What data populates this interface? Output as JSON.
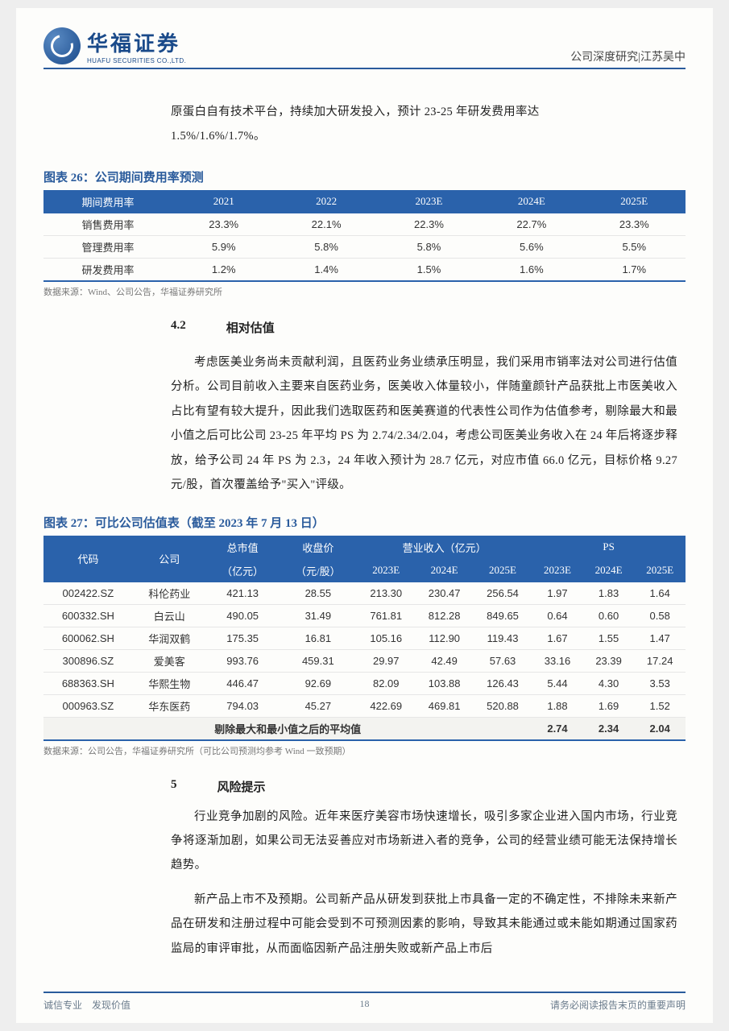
{
  "header": {
    "logo_cn": "华福证券",
    "logo_en": "HUAFU SECURITIES CO.,LTD.",
    "right": "公司深度研究|江苏吴中"
  },
  "intro_lines": [
    "原蛋白自有技术平台，持续加大研发投入，预计 23-25 年研发费用率达",
    "1.5%/1.6%/1.7%。"
  ],
  "table26": {
    "title": "图表 26：公司期间费用率预测",
    "columns": [
      "期间费用率",
      "2021",
      "2022",
      "2023E",
      "2024E",
      "2025E"
    ],
    "rows": [
      [
        "销售费用率",
        "23.3%",
        "22.1%",
        "22.3%",
        "22.7%",
        "23.3%"
      ],
      [
        "管理费用率",
        "5.9%",
        "5.8%",
        "5.8%",
        "5.6%",
        "5.5%"
      ],
      [
        "研发费用率",
        "1.2%",
        "1.4%",
        "1.5%",
        "1.6%",
        "1.7%"
      ]
    ],
    "source": "数据来源：Wind、公司公告，华福证券研究所",
    "header_bg": "#2a62ab",
    "header_fg": "#ffffff"
  },
  "sec42": {
    "num": "4.2",
    "title": "相对估值"
  },
  "para42": "考虑医美业务尚未贡献利润，且医药业务业绩承压明显，我们采用市销率法对公司进行估值分析。公司目前收入主要来自医药业务，医美收入体量较小，伴随童颜针产品获批上市医美收入占比有望有较大提升，因此我们选取医药和医美赛道的代表性公司作为估值参考，剔除最大和最小值之后可比公司 23-25 年平均 PS 为 2.74/2.34/2.04，考虑公司医美业务收入在 24 年后将逐步释放，给予公司 24 年 PS 为 2.3，24 年收入预计为 28.7 亿元，对应市值 66.0 亿元，目标价格 9.27 元/股，首次覆盖给予\"买入\"评级。",
  "table27": {
    "title": "图表 27：可比公司估值表（截至 2023 年 7 月 13 日）",
    "head_row1": [
      "代码",
      "公司",
      "总市值",
      "收盘价",
      "营业收入（亿元）",
      "PS"
    ],
    "head_row2_units": [
      "（亿元）",
      "（元/股）",
      "2023E",
      "2024E",
      "2025E",
      "2023E",
      "2024E",
      "2025E"
    ],
    "rows": [
      [
        "002422.SZ",
        "科伦药业",
        "421.13",
        "28.55",
        "213.30",
        "230.47",
        "256.54",
        "1.97",
        "1.83",
        "1.64"
      ],
      [
        "600332.SH",
        "白云山",
        "490.05",
        "31.49",
        "761.81",
        "812.28",
        "849.65",
        "0.64",
        "0.60",
        "0.58"
      ],
      [
        "600062.SH",
        "华润双鹤",
        "175.35",
        "16.81",
        "105.16",
        "112.90",
        "119.43",
        "1.67",
        "1.55",
        "1.47"
      ],
      [
        "300896.SZ",
        "爱美客",
        "993.76",
        "459.31",
        "29.97",
        "42.49",
        "57.63",
        "33.16",
        "23.39",
        "17.24"
      ],
      [
        "688363.SH",
        "华熙生物",
        "446.47",
        "92.69",
        "82.09",
        "103.88",
        "126.43",
        "5.44",
        "4.30",
        "3.53"
      ],
      [
        "000963.SZ",
        "华东医药",
        "794.03",
        "45.27",
        "422.69",
        "469.81",
        "520.88",
        "1.88",
        "1.69",
        "1.52"
      ]
    ],
    "avg_label": "剔除最大和最小值之后的平均值",
    "avg_vals": [
      "2.74",
      "2.34",
      "2.04"
    ],
    "source": "数据来源：公司公告，华福证券研究所（可比公司预测均参考 Wind 一致预期）"
  },
  "sec5": {
    "num": "5",
    "title": "风险提示"
  },
  "para5a": "行业竞争加剧的风险。近年来医疗美容市场快速增长，吸引多家企业进入国内市场，行业竞争将逐渐加剧，如果公司无法妥善应对市场新进入者的竞争，公司的经营业绩可能无法保持增长趋势。",
  "para5b": "新产品上市不及预期。公司新产品从研发到获批上市具备一定的不确定性，不排除未来新产品在研发和注册过程中可能会受到不可预测因素的影响，导致其未能通过或未能如期通过国家药监局的审评审批，从而面临因新产品注册失败或新产品上市后",
  "footer": {
    "left": "诚信专业　发现价值",
    "page": "18",
    "right": "请务必阅读报告末页的重要声明"
  }
}
